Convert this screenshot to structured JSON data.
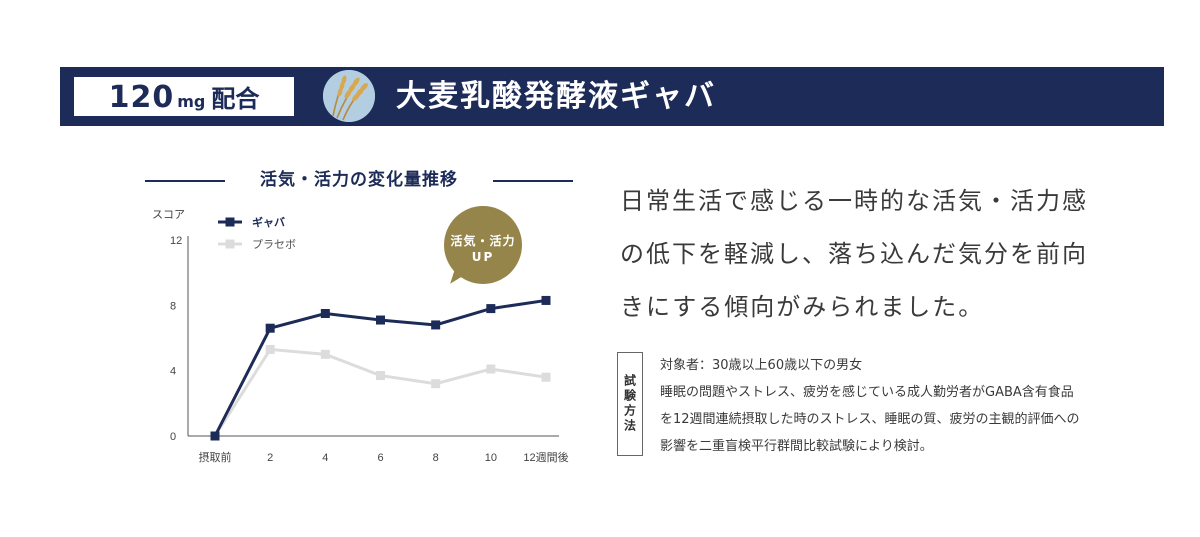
{
  "banner": {
    "badge_number": "120",
    "badge_unit": "mg",
    "badge_word": "配合",
    "title": "大麦乳酸発酵液ギャバ",
    "icon": "wheat-icon"
  },
  "chart_data": {
    "type": "line",
    "title": "活気・活力の変化量推移",
    "ylabel": "スコア",
    "xlabel": "",
    "categories": [
      "摂取前",
      "2",
      "4",
      "6",
      "8",
      "10",
      "12週間後"
    ],
    "yticks": [
      0,
      4,
      8,
      12
    ],
    "ylim": [
      0,
      12
    ],
    "legend_position": "top-left",
    "series": [
      {
        "name": "ギャバ",
        "color": "#1c2b57",
        "values": [
          0,
          6.6,
          7.5,
          7.1,
          6.8,
          7.8,
          8.3
        ]
      },
      {
        "name": "プラセボ",
        "color": "#dcdcdc",
        "values": [
          0,
          5.3,
          5.0,
          3.7,
          3.2,
          4.1,
          3.6
        ]
      }
    ],
    "annotation": {
      "line1": "活気・活力",
      "line2": "UP",
      "color": "#95854a"
    }
  },
  "description": {
    "lines": [
      "日常生活で感じる一時的な活気・活力感",
      "の低下を軽減し、落ち込んだ気分を前向",
      "きにする傾向がみられました。"
    ]
  },
  "trial": {
    "label": "試験方法",
    "lines": [
      "対象者：30歳以上60歳以下の男女",
      "睡眠の問題やストレス、疲労を感じている成人勤労者がGABA含有食品",
      "を12週間連続摂取した時のストレス、睡眠の質、疲労の主観的評価への",
      "影響を二重盲検平行群間比較試験により検討。"
    ]
  }
}
